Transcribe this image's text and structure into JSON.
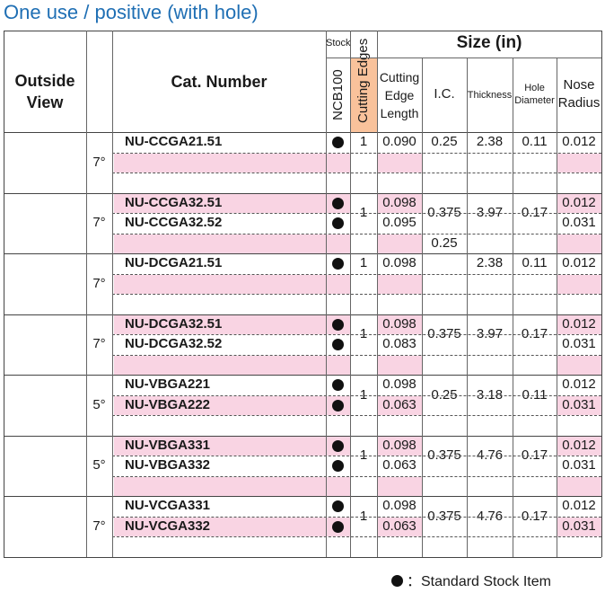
{
  "title": "One use / positive (with hole)",
  "headers": {
    "outside_view": "Outside View",
    "cat_number": "Cat. Number",
    "stock": "Stock",
    "grade": "NCB100",
    "cutting_edges": "Cutting Edges",
    "size": "Size (in)",
    "cutting_edge_length": "Cutting Edge Length",
    "ic": "I.C.",
    "thickness": "Thickness",
    "hole_diameter": "Hole Diameter",
    "nose_radius": "Nose Radius"
  },
  "colors": {
    "pink": "#f9d4e3",
    "orange": "#f9c29b",
    "title_blue": "#1f6fb4"
  },
  "groups": [
    {
      "angle": "7°",
      "edges": "1",
      "ic": "0.25",
      "thickness": "2.38",
      "hole": "0.11",
      "items": [
        {
          "cat": "NU-CCGA21.51",
          "stock": true,
          "length": "0.090",
          "radius": "0.012"
        }
      ]
    },
    {
      "angle": "7°",
      "edges": "1",
      "ic": "0.375",
      "ic_extra": "0.25",
      "thickness": "3.97",
      "hole": "0.17",
      "items": [
        {
          "cat": "NU-CCGA32.51",
          "stock": true,
          "length": "0.098",
          "radius": "0.012"
        },
        {
          "cat": "NU-CCGA32.52",
          "stock": true,
          "length": "0.095",
          "radius": "0.031"
        }
      ]
    },
    {
      "angle": "7°",
      "edges": "1",
      "ic": "",
      "thickness": "2.38",
      "hole": "0.11",
      "items": [
        {
          "cat": "NU-DCGA21.51",
          "stock": true,
          "length": "0.098",
          "radius": "0.012"
        }
      ]
    },
    {
      "angle": "7°",
      "edges": "1",
      "ic": "0.375",
      "thickness": "3.97",
      "hole": "0.17",
      "items": [
        {
          "cat": "NU-DCGA32.51",
          "stock": true,
          "length": "0.098",
          "radius": "0.012"
        },
        {
          "cat": "NU-DCGA32.52",
          "stock": true,
          "length": "0.083",
          "radius": "0.031"
        }
      ]
    },
    {
      "angle": "5°",
      "edges": "1",
      "ic": "0.25",
      "thickness": "3.18",
      "hole": "0.11",
      "items": [
        {
          "cat": "NU-VBGA221",
          "stock": true,
          "length": "0.098",
          "radius": "0.012"
        },
        {
          "cat": "NU-VBGA222",
          "stock": true,
          "length": "0.063",
          "radius": "0.031"
        }
      ]
    },
    {
      "angle": "5°",
      "edges": "1",
      "ic": "0.375",
      "thickness": "4.76",
      "hole": "0.17",
      "items": [
        {
          "cat": "NU-VBGA331",
          "stock": true,
          "length": "0.098",
          "radius": "0.012"
        },
        {
          "cat": "NU-VBGA332",
          "stock": true,
          "length": "0.063",
          "radius": "0.031"
        }
      ]
    },
    {
      "angle": "7°",
      "edges": "1",
      "ic": "0.375",
      "thickness": "4.76",
      "hole": "0.17",
      "items": [
        {
          "cat": "NU-VCGA331",
          "stock": true,
          "length": "0.098",
          "radius": "0.012"
        },
        {
          "cat": "NU-VCGA332",
          "stock": true,
          "length": "0.063",
          "radius": "0.031"
        }
      ]
    }
  ],
  "footer": {
    "symbol": "standard-stock-dot-icon",
    "text": "：Standard Stock Item"
  }
}
